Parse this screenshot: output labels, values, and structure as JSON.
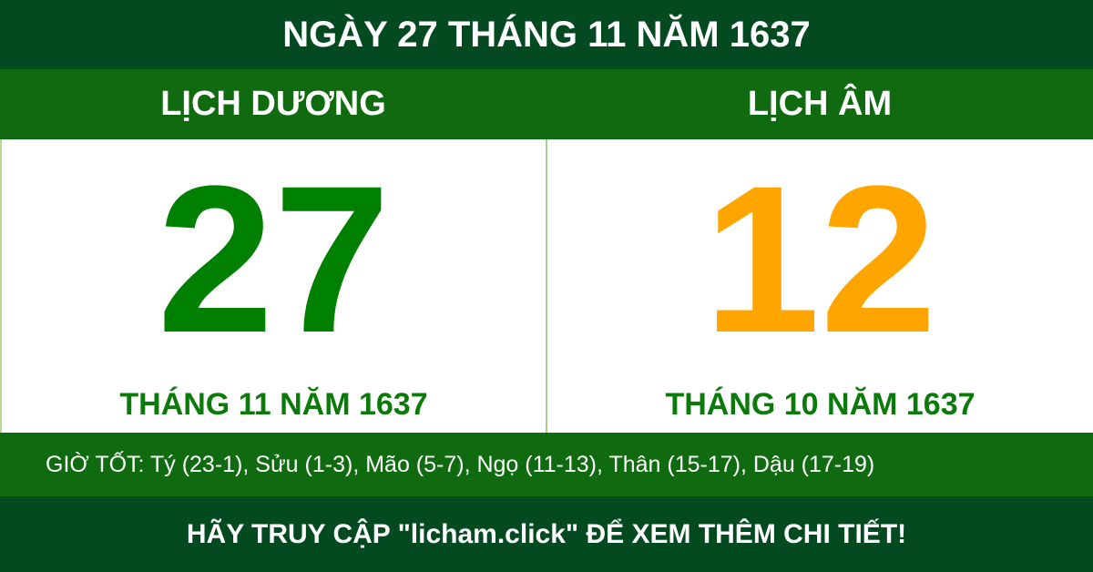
{
  "title": "NGÀY 27 THÁNG 11 NĂM 1637",
  "solar": {
    "heading": "LỊCH DƯƠNG",
    "day": "27",
    "month_year": "THÁNG 11 NĂM 1637"
  },
  "lunar": {
    "heading": "LỊCH ÂM",
    "day": "12",
    "month_year": "THÁNG 10 NĂM 1637"
  },
  "good_hours": "GIỜ TỐT: Tý (23-1), Sửu (1-3), Mão (5-7), Ngọ (11-13), Thân (15-17), Dậu (17-19)",
  "footer": "HÃY TRUY CẬP \"licham.click\" ĐỂ XEM THÊM CHI TIẾT!",
  "colors": {
    "dark_green": "#044a21",
    "band_green": "#106b10",
    "solar_day": "#008000",
    "lunar_day": "#ffa500"
  }
}
